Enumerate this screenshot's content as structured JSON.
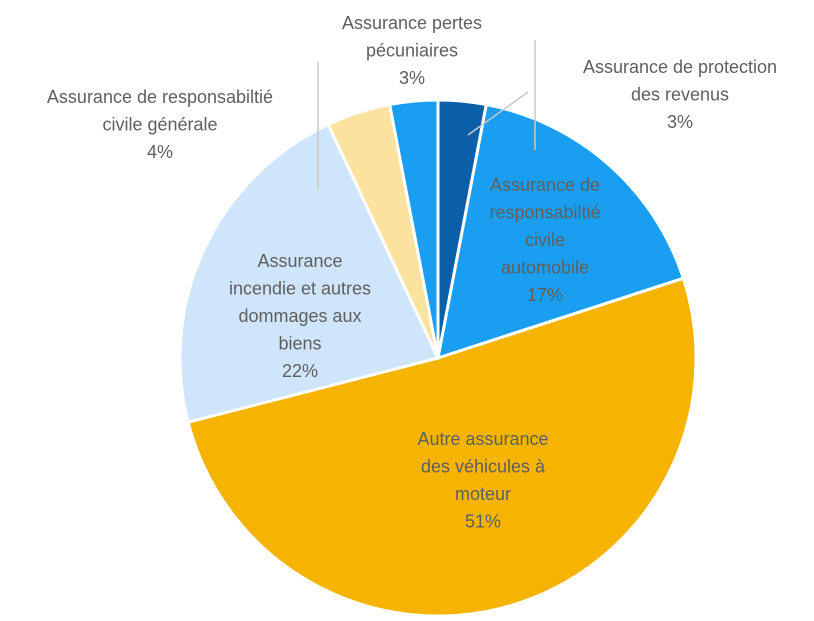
{
  "chart_data": {
    "type": "pie",
    "categories": [
      "Assurance de protection des revenus",
      "Assurance de responsabiltié civile automobile",
      "Autre assurance des véhicules à moteur",
      "Assurance incendie et autres dommages aux biens",
      "Assurance de responsabiltié civile générale",
      "Assurance pertes pécuniaires"
    ],
    "values": [
      3,
      17,
      51,
      22,
      4,
      3
    ],
    "value_labels": [
      "3%",
      "17%",
      "51%",
      "22%",
      "4%",
      "3%"
    ],
    "colors": [
      "#0b5ea8",
      "#1a9ef2",
      "#f6b400",
      "#cfe5fb",
      "#fbe29e",
      "#1a9ef2"
    ]
  }
}
